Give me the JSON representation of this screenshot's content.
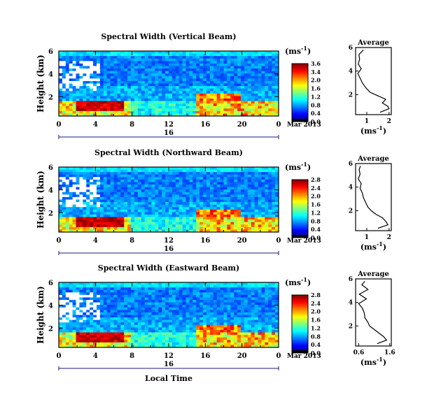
{
  "chart_data": [
    {
      "type": "heatmap",
      "title": "Spectral Width (Vertical Beam)",
      "ylabel": "Height (km)",
      "xlabel": "",
      "ylim": [
        0.3,
        6
      ],
      "xlim": [
        0,
        24
      ],
      "x_ticks": [
        "0",
        "4",
        "8",
        "12",
        "16",
        "20",
        "0"
      ],
      "y_ticks": [
        "6",
        "4",
        "2"
      ],
      "date_label": "16",
      "month_label": "Mar 2013",
      "colorbar": {
        "unit": "(ms",
        "unit_exp": "-1",
        "unit_close": ")",
        "ticks": [
          "3.6",
          "3.4",
          "2.0",
          "1.6",
          "1.2",
          "0.8",
          "0.4",
          "0.0"
        ],
        "max": 3.6
      },
      "profile": {
        "title": "Average",
        "unit": "(ms",
        "unit_exp": "-1",
        "unit_close": ")",
        "x_ticks": [
          "1",
          "2"
        ],
        "y_ticks": [
          "6",
          "4",
          "2"
        ],
        "xlim": [
          0.5,
          2.1
        ],
        "heights": [
          0.5,
          0.8,
          1.0,
          1.3,
          1.6,
          1.9,
          2.2,
          2.6,
          3.0,
          3.4,
          3.8,
          4.2,
          4.6,
          5.0,
          5.4,
          5.8
        ],
        "values": [
          1.6,
          2.0,
          1.95,
          1.7,
          1.85,
          1.5,
          1.15,
          0.95,
          0.8,
          0.7,
          0.6,
          0.75,
          0.62,
          0.68,
          0.65,
          0.85
        ]
      }
    },
    {
      "type": "heatmap",
      "title": "Spectral Width (Northward Beam)",
      "ylabel": "Height (km)",
      "xlabel": "",
      "ylim": [
        0.3,
        6
      ],
      "xlim": [
        0,
        24
      ],
      "x_ticks": [
        "0",
        "4",
        "8",
        "12",
        "16",
        "20",
        "0"
      ],
      "y_ticks": [
        "6",
        "4",
        "2"
      ],
      "date_label": "16",
      "month_label": "Mar 2013",
      "colorbar": {
        "unit": "(ms",
        "unit_exp": "-1",
        "unit_close": ")",
        "ticks": [
          "2.8",
          "2.4",
          "2.0",
          "1.6",
          "1.2",
          "0.8",
          "0.4",
          "0.0"
        ],
        "max": 2.8
      },
      "profile": {
        "title": "Average",
        "unit": "(ms",
        "unit_exp": "-1",
        "unit_close": ")",
        "x_ticks": [
          "1",
          "2"
        ],
        "y_ticks": [
          "6",
          "4",
          "2"
        ],
        "xlim": [
          0.5,
          2.1
        ],
        "heights": [
          0.5,
          0.8,
          1.1,
          1.4,
          1.7,
          2.0,
          2.3,
          2.7,
          3.1,
          3.5,
          3.9,
          4.3,
          4.7,
          5.1,
          5.5,
          5.8
        ],
        "values": [
          1.5,
          1.95,
          1.85,
          1.7,
          1.4,
          1.2,
          1.05,
          0.95,
          0.85,
          0.8,
          0.7,
          0.75,
          0.62,
          0.7,
          0.66,
          0.72
        ]
      }
    },
    {
      "type": "heatmap",
      "title": "Spectral Width (Eastward Beam)",
      "ylabel": "Height (km)",
      "xlabel": "Local Time",
      "ylim": [
        0.3,
        6
      ],
      "xlim": [
        0,
        24
      ],
      "x_ticks": [
        "0",
        "4",
        "8",
        "12",
        "16",
        "20",
        "0"
      ],
      "y_ticks": [
        "6",
        "4",
        "2"
      ],
      "date_label": "16",
      "month_label": "Mar 2013",
      "colorbar": {
        "unit": "(ms",
        "unit_exp": "-1",
        "unit_close": ")",
        "ticks": [
          "2.8",
          "2.4",
          "2.0",
          "1.6",
          "1.2",
          "0.8",
          "0.4",
          "0.0"
        ],
        "max": 2.8
      },
      "profile": {
        "title": "Average",
        "unit": "(ms",
        "unit_exp": "-1",
        "unit_close": ")",
        "x_ticks": [
          "0.6",
          "1.6"
        ],
        "y_ticks": [
          "6",
          "4",
          "2"
        ],
        "xlim": [
          0.5,
          1.65
        ],
        "heights": [
          0.5,
          0.8,
          1.1,
          1.4,
          1.7,
          2.0,
          2.3,
          2.7,
          3.1,
          3.5,
          3.9,
          4.3,
          4.7,
          5.1,
          5.5,
          5.8
        ],
        "values": [
          1.2,
          1.5,
          1.4,
          1.25,
          1.1,
          0.95,
          0.9,
          0.8,
          0.78,
          0.72,
          0.6,
          0.85,
          0.62,
          0.9,
          0.7,
          0.8
        ]
      }
    }
  ]
}
